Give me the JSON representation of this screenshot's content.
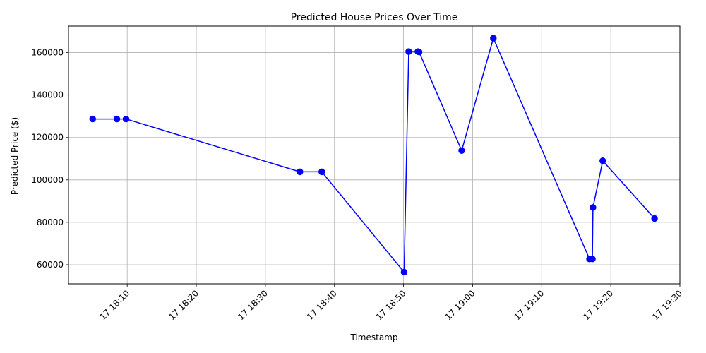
{
  "chart_data": {
    "type": "line",
    "title": "Predicted House Prices Over Time",
    "xlabel": "Timestamp",
    "ylabel": "Predicted Price ($)",
    "x_axis_type": "time",
    "xlim": [
      "2024-01-17 18:01:30",
      "2024-01-17 19:30:00"
    ],
    "ylim": [
      51000,
      172500
    ],
    "grid": true,
    "x_ticks": [
      {
        "value": "2024-01-17 18:10",
        "label": "17 18:10"
      },
      {
        "value": "2024-01-17 18:20",
        "label": "17 18:20"
      },
      {
        "value": "2024-01-17 18:30",
        "label": "17 18:30"
      },
      {
        "value": "2024-01-17 18:40",
        "label": "17 18:40"
      },
      {
        "value": "2024-01-17 18:50",
        "label": "17 18:50"
      },
      {
        "value": "2024-01-17 19:00",
        "label": "17 19:00"
      },
      {
        "value": "2024-01-17 19:10",
        "label": "17 19:10"
      },
      {
        "value": "2024-01-17 19:20",
        "label": "17 19:20"
      },
      {
        "value": "2024-01-17 19:30",
        "label": "17 19:30"
      }
    ],
    "y_ticks": [
      60000,
      80000,
      100000,
      120000,
      140000,
      160000
    ],
    "series": [
      {
        "color": "#0000ff",
        "marker": "circle",
        "points": [
          {
            "x": "2024-01-17 18:05:00",
            "y": 128700
          },
          {
            "x": "2024-01-17 18:08:30",
            "y": 128700
          },
          {
            "x": "2024-01-17 18:09:50",
            "y": 128700
          },
          {
            "x": "2024-01-17 18:35:00",
            "y": 103800
          },
          {
            "x": "2024-01-17 18:38:10",
            "y": 103800
          },
          {
            "x": "2024-01-17 18:50:05",
            "y": 56500
          },
          {
            "x": "2024-01-17 18:50:45",
            "y": 160500
          },
          {
            "x": "2024-01-17 18:52:05",
            "y": 160500
          },
          {
            "x": "2024-01-17 18:52:15",
            "y": 160300
          },
          {
            "x": "2024-01-17 18:58:25",
            "y": 113800
          },
          {
            "x": "2024-01-17 19:03:00",
            "y": 166800
          },
          {
            "x": "2024-01-17 19:16:55",
            "y": 62700
          },
          {
            "x": "2024-01-17 19:17:20",
            "y": 62700
          },
          {
            "x": "2024-01-17 19:17:25",
            "y": 87000
          },
          {
            "x": "2024-01-17 19:18:50",
            "y": 109000
          },
          {
            "x": "2024-01-17 19:26:20",
            "y": 81800
          }
        ]
      }
    ]
  }
}
